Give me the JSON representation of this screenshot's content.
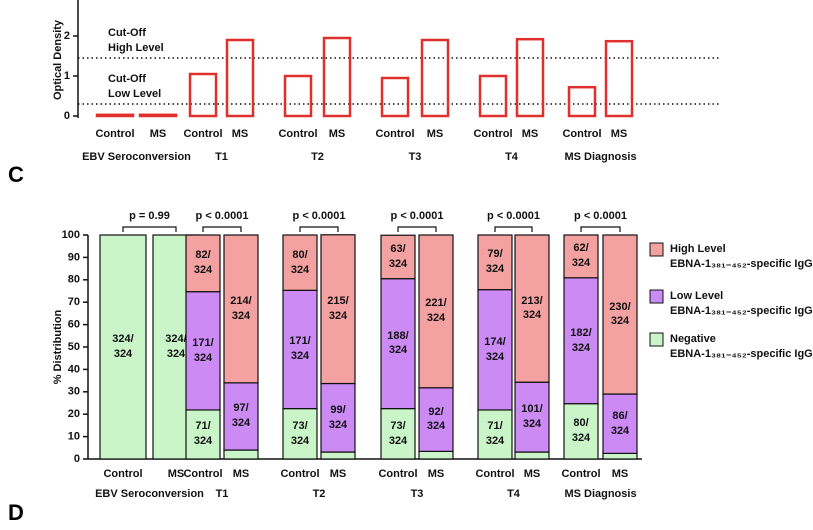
{
  "panel_labels": [
    "C",
    "D"
  ],
  "chart_data": [
    {
      "type": "bar",
      "y_label": "Optical Density",
      "categories": [
        "Control",
        "MS",
        "Control",
        "MS",
        "Control",
        "MS",
        "Control",
        "MS",
        "Control",
        "MS",
        "Control",
        "MS"
      ],
      "groups": [
        "EBV Seroconversion",
        "T1",
        "T2",
        "T3",
        "T4",
        "MS Diagnosis"
      ],
      "values": [
        0.03,
        0.03,
        1.05,
        1.9,
        1.0,
        1.95,
        0.95,
        1.9,
        1.0,
        1.92,
        0.72,
        1.87
      ],
      "color": "#e0302e",
      "ylim": [
        -0.1,
        2.9
      ],
      "yticks": [
        0,
        1,
        2
      ],
      "cutoffs": [
        {
          "label": "Cut-Off\nHigh Level",
          "value": 1.45
        },
        {
          "label": "Cut-Off\nLow Level",
          "value": 0.3
        }
      ]
    },
    {
      "type": "stacked_bar",
      "y_label": "% Distribution",
      "categories": [
        "Control",
        "MS",
        "Control",
        "MS",
        "Control",
        "MS",
        "Control",
        "MS",
        "Control",
        "MS",
        "Control",
        "MS"
      ],
      "groups": [
        "EBV Seroconversion",
        "T1",
        "T2",
        "T3",
        "T4",
        "MS Diagnosis"
      ],
      "p_values": [
        "p = 0.99",
        "p < 0.0001",
        "p < 0.0001",
        "p < 0.0001",
        "p < 0.0001",
        "p < 0.0001"
      ],
      "ylim": [
        0,
        100
      ],
      "yticks": [
        0,
        10,
        20,
        30,
        40,
        50,
        60,
        70,
        80,
        90,
        100
      ],
      "series": [
        {
          "name": "Negative\nEBNA-1₃₈₁₋₄₅₂-specific IgG",
          "color": "#c9f5c9",
          "values": [
            100,
            100,
            21.9,
            4.0,
            22.5,
            3.1,
            22.5,
            3.4,
            21.9,
            3.1,
            24.7,
            2.5
          ],
          "value_labels": [
            "324/\n324",
            "324/\n324",
            "71/\n324",
            null,
            "73/\n324",
            null,
            "73/\n324",
            null,
            "71/\n324",
            null,
            "80/\n324",
            null
          ]
        },
        {
          "name": "Low Level\nEBNA-1₃₈₁₋₄₅₂-specific IgG",
          "color": "#cc8af5",
          "values": [
            0,
            0,
            52.8,
            30.0,
            52.8,
            30.6,
            58.0,
            28.4,
            53.7,
            31.2,
            56.2,
            26.5
          ],
          "value_labels": [
            null,
            null,
            "171/\n324",
            "97/\n324",
            "171/\n324",
            "99/\n324",
            "188/\n324",
            "92/\n324",
            "174/\n324",
            "101/\n324",
            "182/\n324",
            "86/\n324"
          ]
        },
        {
          "name": "High Level\nEBNA-1₃₈₁₋₄₅₂-specific IgG",
          "color": "#f4a1a1",
          "values": [
            0,
            0,
            25.3,
            66.0,
            24.7,
            66.4,
            19.4,
            68.2,
            24.4,
            65.7,
            19.1,
            71.0
          ],
          "value_labels": [
            null,
            null,
            "82/\n324",
            "214/\n324",
            "80/\n324",
            "215/\n324",
            "63/\n324",
            "221/\n324",
            "79/\n324",
            "213/\n324",
            "62/\n324",
            "230/\n324"
          ]
        }
      ]
    }
  ]
}
